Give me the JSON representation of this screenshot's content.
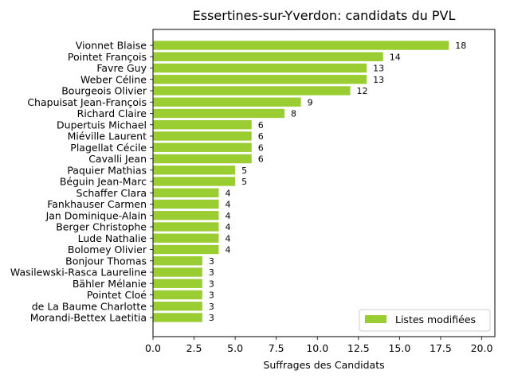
{
  "chart_data": {
    "type": "bar",
    "orientation": "horizontal",
    "title": "Essertines-sur-Yverdon: candidats du PVL",
    "xlabel": "Suffrages des Candidats",
    "ylabel": "",
    "xlim": [
      0,
      20.8
    ],
    "xticks": [
      0,
      2.5,
      5,
      7.5,
      10,
      12.5,
      15,
      17.5,
      20
    ],
    "xtick_labels": [
      "0.0",
      "2.5",
      "5.0",
      "7.5",
      "10.0",
      "12.5",
      "15.0",
      "17.5",
      "20.0"
    ],
    "grid": false,
    "legend_position": "bottom-right",
    "bar_color": "#9acd32",
    "categories": [
      "Vionnet Blaise",
      "Pointet François",
      "Favre Guy",
      "Weber Céline",
      "Bourgeois Olivier",
      "Chapuisat Jean-François",
      "Richard Claire",
      "Dupertuis Michael",
      "Miéville Laurent",
      "Plagellat Cécile",
      "Cavalli Jean",
      "Paquier Mathias",
      "Béguin Jean-Marc",
      "Schaffer Clara",
      "Fankhauser Carmen",
      "Jan Dominique-Alain",
      "Berger Christophe",
      "Lude Nathalie",
      "Bolomey Olivier",
      "Bonjour Thomas",
      "Wasilewski-Rasca Laureline",
      "Bähler Mélanie",
      "Pointet Cloé",
      "de La Baume Charlotte",
      "Morandi-Bettex Laetitia"
    ],
    "series": [
      {
        "name": "Listes modifiées",
        "values": [
          18,
          14,
          13,
          13,
          12,
          9,
          8,
          6,
          6,
          6,
          6,
          5,
          5,
          4,
          4,
          4,
          4,
          4,
          4,
          3,
          3,
          3,
          3,
          3,
          3
        ],
        "labels": [
          "18",
          "14",
          "13",
          "13",
          "12",
          "9",
          "8",
          "6",
          "6",
          "6",
          "6",
          "5",
          "5",
          "4",
          "4",
          "4",
          "4",
          "4",
          "4",
          "3",
          "3",
          "3",
          "3",
          "3",
          "3"
        ]
      }
    ]
  }
}
